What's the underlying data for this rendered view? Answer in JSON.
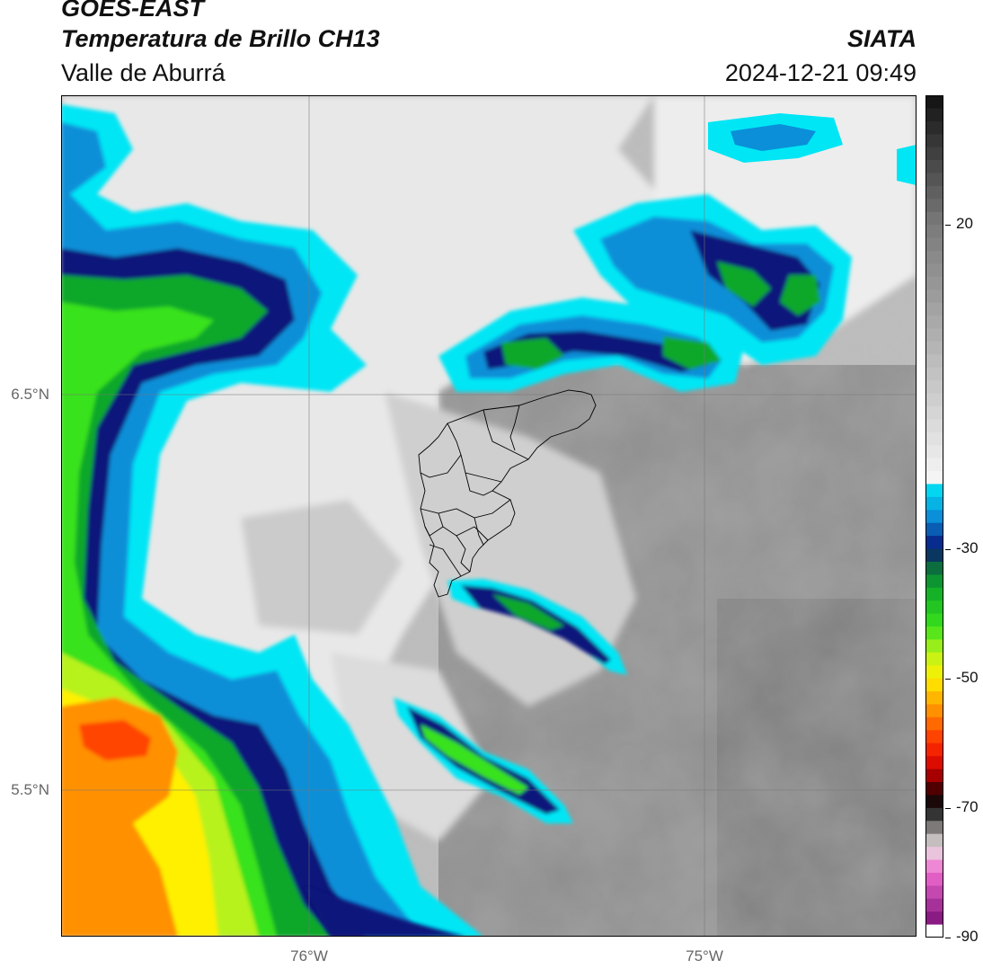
{
  "header": {
    "satellite": "GOES-EAST",
    "product": "Temperatura de Brillo CH13",
    "region": "Valle de Aburrá",
    "brand": "SIATA",
    "datetime": "2024-12-21 09:49"
  },
  "map": {
    "lat_labels": [
      "6.5°N",
      "5.5°N"
    ],
    "lon_labels": [
      "76°W",
      "75°W"
    ],
    "lat_values": [
      6.5,
      5.5
    ],
    "lon_values": [
      -76,
      -75
    ],
    "extent": {
      "lon_min": -76.62,
      "lon_max": -74.53,
      "lat_min": 5.135,
      "lat_max": 7.25
    }
  },
  "colorbar": {
    "units_range": [
      -90,
      40
    ],
    "tick_labels": [
      "20",
      "-30",
      "-50",
      "-70",
      "-90"
    ],
    "tick_values": [
      20,
      -30,
      -50,
      -70,
      -90
    ],
    "stops": [
      {
        "value": 40,
        "color": "#111111"
      },
      {
        "value": 20,
        "color": "#7a7a7a"
      },
      {
        "value": -20,
        "color": "#f7f7f7"
      },
      {
        "value": -20.1,
        "color": "#00e6f5"
      },
      {
        "value": -25,
        "color": "#0a8fd8"
      },
      {
        "value": -30,
        "color": "#08137a"
      },
      {
        "value": -32,
        "color": "#0b5a46"
      },
      {
        "value": -36,
        "color": "#0ea82a"
      },
      {
        "value": -42,
        "color": "#38e21a"
      },
      {
        "value": -46,
        "color": "#b8f21a"
      },
      {
        "value": -50,
        "color": "#fff000"
      },
      {
        "value": -55,
        "color": "#ff9000"
      },
      {
        "value": -60,
        "color": "#ff3000"
      },
      {
        "value": -64,
        "color": "#d10000"
      },
      {
        "value": -68,
        "color": "#250000"
      },
      {
        "value": -70,
        "color": "#111111"
      },
      {
        "value": -76,
        "color": "#e8e0e0"
      },
      {
        "value": -80,
        "color": "#f06ad0"
      },
      {
        "value": -88,
        "color": "#7a1078"
      },
      {
        "value": -88.1,
        "color": "#ffffff"
      },
      {
        "value": -90,
        "color": "#ffffff"
      }
    ]
  },
  "colors": {
    "warm_gray": "#8a8a8a",
    "light_gray": "#d6d6d6",
    "cloud_edge": "#00e6f5",
    "cloud_mid": "#0a8fd8",
    "cloud_dark": "#08137a",
    "cloud_core": "#0ea82a",
    "deep_green": "#38e21a",
    "yellow": "#fff000",
    "orange": "#ff9000",
    "red": "#ff4500"
  }
}
